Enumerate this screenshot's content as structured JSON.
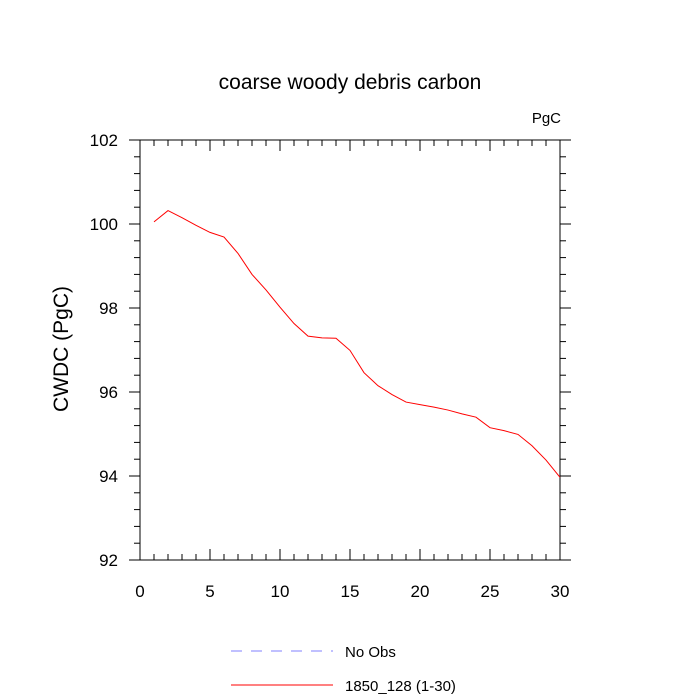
{
  "chart_data": {
    "type": "line",
    "title": "coarse woody debris carbon",
    "units": "PgC",
    "ylabel": "CWDC  (PgC)",
    "xlabel": "",
    "xlim": [
      0,
      30
    ],
    "ylim": [
      92,
      102
    ],
    "xticks": [
      0,
      5,
      10,
      15,
      20,
      25,
      30
    ],
    "yticks": [
      92,
      94,
      96,
      98,
      100,
      102
    ],
    "grid": false,
    "legend_position": "bottom",
    "series": [
      {
        "name": "No Obs",
        "style": "dashed",
        "color": "#8080ff",
        "x": [],
        "y": []
      },
      {
        "name": "1850_128 (1-30)",
        "style": "solid",
        "color": "#ff0000",
        "x": [
          1,
          2,
          3,
          4,
          5,
          6,
          7,
          8,
          9,
          10,
          11,
          12,
          13,
          14,
          15,
          16,
          17,
          18,
          19,
          20,
          21,
          22,
          23,
          24,
          25,
          26,
          27,
          28,
          29,
          30
        ],
        "y": [
          100.05,
          100.32,
          100.15,
          99.97,
          99.8,
          99.69,
          99.3,
          98.8,
          98.43,
          98.02,
          97.63,
          97.33,
          97.29,
          97.28,
          96.99,
          96.46,
          96.15,
          95.94,
          95.76,
          95.7,
          95.64,
          95.57,
          95.48,
          95.4,
          95.15,
          95.08,
          94.99,
          94.72,
          94.38,
          93.97
        ]
      }
    ]
  }
}
